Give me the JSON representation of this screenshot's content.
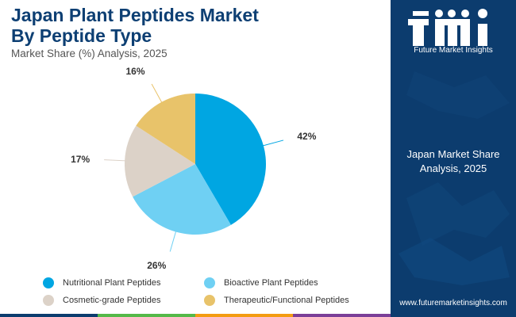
{
  "header": {
    "title_line1": "Japan Plant Peptides Market",
    "title_line2": "By Peptide Type",
    "subtitle": "Market Share (%) Analysis, 2025"
  },
  "chart_data": {
    "type": "pie",
    "title": "Japan Plant Peptides Market By Peptide Type",
    "subtitle": "Market Share (%) Analysis, 2025",
    "categories": [
      "Nutritional Plant Peptides",
      "Bioactive Plant Peptides",
      "Cosmetic-grade Peptides",
      "Therapeutic/Functional Peptides"
    ],
    "values": [
      42,
      26,
      17,
      16
    ],
    "labels": [
      "42%",
      "26%",
      "17%",
      "16%"
    ],
    "colors": [
      "#00a6e2",
      "#6fd0f3",
      "#dcd2c8",
      "#e8c36a"
    ],
    "legend_position": "bottom"
  },
  "sidebar": {
    "logo_caption": "Future Market Insights",
    "text_line1": "Japan Market Share",
    "text_line2": "Analysis, 2025",
    "website": "www.futuremarketinsights.com",
    "background": "#0c3c6e"
  },
  "footer_colors": [
    "#0c3c6e",
    "#54b948",
    "#f39c12",
    "#7b3f98"
  ]
}
